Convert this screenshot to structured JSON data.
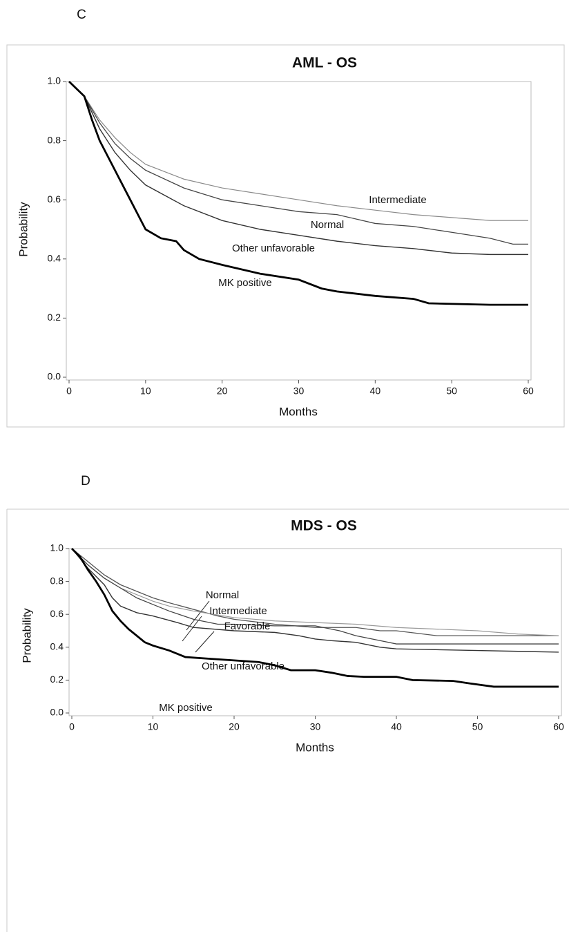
{
  "chart_data": [
    {
      "type": "line",
      "panel": "C",
      "title": "AML - OS",
      "x_label": "Months",
      "y_label": "Probability",
      "xlim": [
        0,
        60
      ],
      "ylim": [
        0,
        1
      ],
      "xticks": [
        0,
        10,
        20,
        30,
        40,
        50,
        60
      ],
      "yticks": [
        {
          "value": 0,
          "label": "0.0"
        },
        {
          "value": 0.2,
          "label": "0.2"
        },
        {
          "value": 0.4,
          "label": "0.4"
        },
        {
          "value": 0.6,
          "label": "0.6"
        },
        {
          "value": 0.8,
          "label": "0.8"
        },
        {
          "value": 1,
          "label": "1.0"
        }
      ],
      "series": [
        {
          "name": "Intermediate",
          "color": "#8a8a8a",
          "x": [
            0,
            2,
            4,
            6,
            8,
            10,
            15,
            20,
            25,
            30,
            35,
            40,
            45,
            50,
            55,
            60
          ],
          "values": [
            1,
            0.95,
            0.87,
            0.81,
            0.76,
            0.72,
            0.67,
            0.64,
            0.62,
            0.6,
            0.58,
            0.565,
            0.55,
            0.54,
            0.53,
            0.53
          ]
        },
        {
          "name": "Normal",
          "color": "#454545",
          "x": [
            0,
            2,
            4,
            6,
            8,
            10,
            15,
            20,
            25,
            30,
            35,
            40,
            45,
            50,
            55,
            58,
            60
          ],
          "values": [
            1,
            0.95,
            0.86,
            0.79,
            0.74,
            0.7,
            0.64,
            0.6,
            0.58,
            0.56,
            0.55,
            0.52,
            0.51,
            0.49,
            0.47,
            0.45,
            0.45
          ]
        },
        {
          "name": "Other unfavorable",
          "color": "#333333",
          "x": [
            0,
            2,
            4,
            6,
            8,
            10,
            15,
            20,
            25,
            30,
            35,
            40,
            45,
            50,
            55,
            60
          ],
          "values": [
            1,
            0.95,
            0.84,
            0.76,
            0.7,
            0.65,
            0.58,
            0.53,
            0.5,
            0.48,
            0.46,
            0.445,
            0.435,
            0.42,
            0.415,
            0.415
          ]
        },
        {
          "name": "MK positive",
          "color": "#000000",
          "x": [
            0,
            2,
            3,
            4,
            5,
            6,
            7,
            8,
            9,
            10,
            12,
            14,
            15,
            17,
            20,
            25,
            30,
            33,
            35,
            40,
            45,
            47,
            55,
            60
          ],
          "values": [
            1,
            0.95,
            0.87,
            0.8,
            0.75,
            0.7,
            0.65,
            0.6,
            0.55,
            0.5,
            0.47,
            0.46,
            0.43,
            0.4,
            0.38,
            0.35,
            0.33,
            0.3,
            0.29,
            0.275,
            0.265,
            0.25,
            0.245,
            0.245
          ]
        }
      ]
    },
    {
      "type": "line",
      "panel": "D",
      "title": "MDS - OS",
      "x_label": "Months",
      "y_label": "Probability",
      "xlim": [
        0,
        60
      ],
      "ylim": [
        0,
        1
      ],
      "xticks": [
        0,
        10,
        20,
        30,
        40,
        50,
        60
      ],
      "yticks": [
        {
          "value": 0,
          "label": "0.0"
        },
        {
          "value": 0.2,
          "label": "0.2"
        },
        {
          "value": 0.4,
          "label": "0.4"
        },
        {
          "value": 0.6,
          "label": "0.6"
        },
        {
          "value": 0.8,
          "label": "0.8"
        },
        {
          "value": 1,
          "label": "1.0"
        }
      ],
      "series": [
        {
          "name": "Normal",
          "color": "#555555",
          "x": [
            0,
            2,
            4,
            6,
            8,
            10,
            12,
            15,
            18,
            20,
            25,
            30,
            35,
            38,
            40,
            45,
            55,
            60
          ],
          "values": [
            1,
            0.92,
            0.84,
            0.78,
            0.74,
            0.7,
            0.67,
            0.63,
            0.59,
            0.57,
            0.54,
            0.52,
            0.52,
            0.5,
            0.5,
            0.47,
            0.47,
            0.47
          ]
        },
        {
          "name": "Intermediate",
          "color": "#9a9a9a",
          "x": [
            0,
            2,
            4,
            6,
            8,
            10,
            12,
            15,
            20,
            25,
            30,
            35,
            40,
            45,
            50,
            55,
            60
          ],
          "values": [
            1,
            0.9,
            0.82,
            0.76,
            0.72,
            0.68,
            0.65,
            0.62,
            0.58,
            0.56,
            0.55,
            0.54,
            0.52,
            0.51,
            0.5,
            0.48,
            0.47
          ]
        },
        {
          "name": "Favorable",
          "color": "#444444",
          "x": [
            0,
            2,
            4,
            6,
            8,
            10,
            12,
            15,
            18,
            20,
            25,
            30,
            33,
            35,
            38,
            40,
            60
          ],
          "values": [
            1,
            0.9,
            0.82,
            0.76,
            0.7,
            0.66,
            0.62,
            0.57,
            0.54,
            0.54,
            0.53,
            0.53,
            0.5,
            0.47,
            0.44,
            0.42,
            0.42
          ]
        },
        {
          "name": "Other unfavorable",
          "color": "#333333",
          "x": [
            0,
            2,
            4,
            5,
            6,
            8,
            10,
            13,
            15,
            20,
            25,
            28,
            30,
            32,
            35,
            38,
            40,
            50,
            55,
            60
          ],
          "values": [
            1,
            0.88,
            0.78,
            0.7,
            0.65,
            0.61,
            0.59,
            0.55,
            0.52,
            0.5,
            0.49,
            0.47,
            0.45,
            0.44,
            0.43,
            0.4,
            0.39,
            0.38,
            0.375,
            0.37
          ]
        },
        {
          "name": "MK positive",
          "color": "#000000",
          "x": [
            0,
            1,
            2,
            3,
            4,
            5,
            6,
            7,
            8,
            9,
            10,
            12,
            13,
            14,
            17,
            20,
            23,
            25,
            27,
            30,
            32,
            34,
            36,
            40,
            42,
            47,
            49,
            52,
            60
          ],
          "values": [
            1,
            0.95,
            0.87,
            0.8,
            0.72,
            0.62,
            0.56,
            0.51,
            0.47,
            0.43,
            0.41,
            0.38,
            0.36,
            0.34,
            0.33,
            0.32,
            0.31,
            0.29,
            0.26,
            0.26,
            0.245,
            0.225,
            0.22,
            0.22,
            0.2,
            0.195,
            0.18,
            0.16,
            0.16
          ]
        }
      ]
    }
  ]
}
